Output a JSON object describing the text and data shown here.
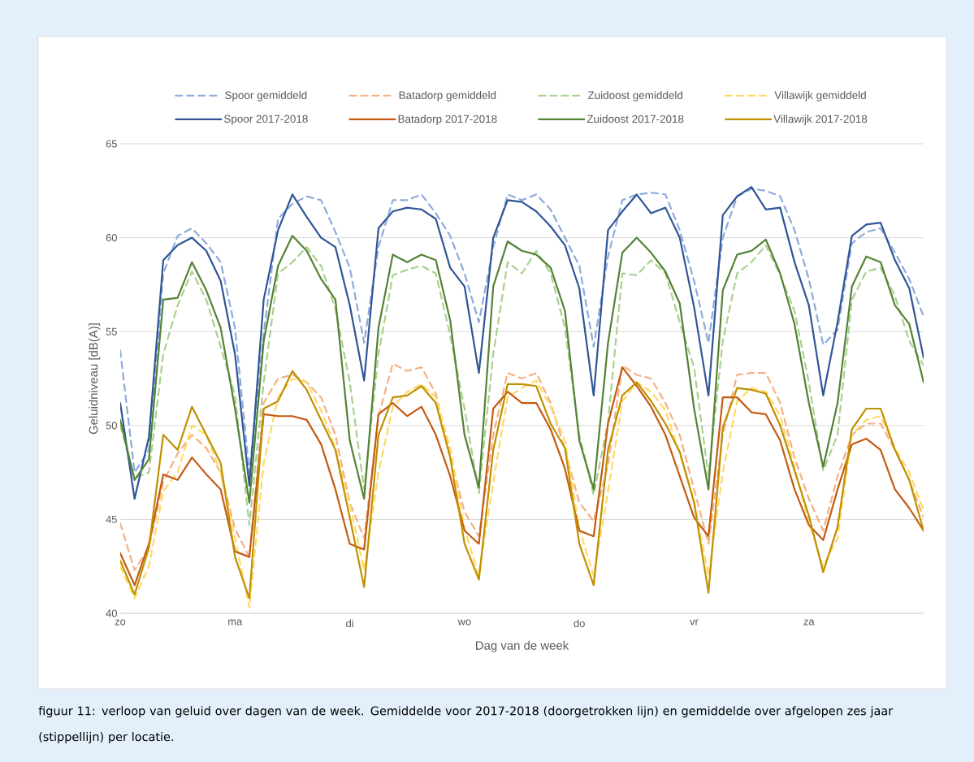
{
  "chart_data": {
    "type": "line",
    "xlabel": "Dag van de week",
    "ylabel": "Geluidniveau [dB(A)]",
    "annotations": [
      "figuur 11: verloop van geluid over dagen van de week. Gemiddelde voor 2017-2018 (doorgetrokken lijn) en gemiddelde over afgelopen zes jaar (stippellijn) per locatie."
    ],
    "categories": [
      "zo",
      null,
      null,
      null,
      null,
      null,
      null,
      null,
      "ma",
      null,
      null,
      null,
      null,
      null,
      null,
      null,
      "di",
      null,
      null,
      null,
      null,
      null,
      null,
      null,
      "wo",
      null,
      null,
      null,
      null,
      null,
      null,
      null,
      "do",
      null,
      null,
      null,
      null,
      null,
      null,
      null,
      "vr",
      null,
      null,
      null,
      null,
      null,
      null,
      null,
      "za",
      null,
      null,
      null,
      null,
      null,
      null,
      null,
      null
    ],
    "ylim": [
      40,
      65
    ],
    "yticks": [
      40,
      45,
      50,
      55,
      60,
      65
    ],
    "grid": "y",
    "legend": "top",
    "series": [
      {
        "name": "Spoor gemiddeld",
        "color": "#8eaadb",
        "line_style": "dashed",
        "values": [
          54.0,
          47.5,
          48.7,
          58.1,
          60.1,
          60.5,
          59.7,
          58.7,
          55.2,
          47.5,
          54.9,
          61.0,
          61.8,
          62.2,
          62.0,
          60.3,
          58.4,
          54.4,
          59.5,
          62.0,
          62.0,
          62.3,
          61.3,
          60.1,
          58.1,
          55.5,
          59.5,
          62.3,
          62.0,
          62.3,
          61.5,
          60.0,
          58.5,
          54.2,
          59.0,
          62.0,
          62.3,
          62.4,
          62.3,
          60.4,
          57.7,
          54.4,
          60.0,
          62.2,
          62.6,
          62.5,
          62.2,
          60.4,
          57.8,
          54.3,
          55.1,
          59.7,
          60.3,
          60.5,
          59.2,
          57.8,
          55.8
        ]
      },
      {
        "name": "Batadorp gemiddeld",
        "color": "#f4b183",
        "line_style": "dashed",
        "values": [
          44.8,
          42.3,
          43.5,
          47.0,
          48.5,
          49.5,
          48.8,
          47.5,
          44.5,
          43.0,
          51.2,
          52.5,
          52.7,
          52.3,
          51.5,
          49.5,
          45.9,
          44.0,
          50.5,
          53.3,
          52.9,
          53.1,
          51.7,
          48.4,
          45.4,
          44.1,
          49.5,
          52.8,
          52.5,
          52.8,
          51.2,
          48.7,
          45.9,
          44.9,
          47.9,
          53.2,
          52.7,
          52.5,
          51.2,
          49.5,
          46.6,
          43.7,
          49.5,
          52.7,
          52.8,
          52.8,
          51.2,
          48.3,
          46.1,
          44.4,
          47.3,
          49.5,
          50.1,
          50.1,
          48.7,
          47.1,
          45.1
        ]
      },
      {
        "name": "Zuidoost gemiddeld",
        "color": "#a9d18e",
        "line_style": "dashed",
        "values": [
          50.0,
          47.2,
          47.5,
          53.8,
          56.4,
          58.2,
          56.7,
          54.2,
          51.6,
          44.7,
          52.3,
          58.1,
          58.7,
          59.5,
          58.5,
          56.2,
          52.3,
          46.6,
          53.8,
          58.0,
          58.3,
          58.5,
          58.1,
          54.8,
          50.9,
          46.4,
          53.8,
          58.7,
          58.1,
          59.3,
          58.1,
          55.2,
          49.5,
          46.3,
          50.2,
          58.1,
          58.0,
          58.8,
          58.1,
          55.5,
          53.1,
          47.3,
          54.5,
          58.1,
          58.7,
          59.6,
          58.0,
          56.1,
          52.3,
          47.6,
          49.5,
          56.7,
          58.2,
          58.4,
          56.9,
          54.5,
          53.2
        ]
      },
      {
        "name": "Villawijk gemiddeld",
        "color": "#ffd966",
        "line_style": "dashed",
        "values": [
          42.5,
          40.8,
          42.5,
          46.5,
          47.5,
          50.0,
          49.5,
          47.5,
          44.0,
          40.3,
          48.0,
          51.5,
          52.5,
          52.3,
          50.8,
          48.8,
          45.8,
          42.3,
          47.5,
          51.0,
          51.8,
          52.2,
          51.5,
          48.8,
          44.5,
          42.0,
          47.0,
          51.5,
          52.0,
          52.4,
          51.0,
          49.2,
          44.5,
          42.0,
          46.5,
          51.3,
          52.3,
          51.8,
          50.8,
          48.5,
          46.0,
          42.0,
          47.5,
          51.3,
          52.0,
          51.8,
          50.5,
          47.8,
          44.8,
          42.5,
          44.0,
          49.5,
          50.3,
          50.5,
          48.8,
          47.5,
          45.5
        ]
      },
      {
        "name": "Spoor 2017-2018",
        "color": "#2f5597",
        "line_style": "solid",
        "values": [
          51.2,
          46.1,
          49.4,
          58.8,
          59.6,
          60.0,
          59.3,
          57.7,
          53.8,
          46.8,
          56.7,
          60.4,
          62.3,
          61.1,
          60.0,
          59.5,
          56.4,
          52.4,
          60.5,
          61.4,
          61.6,
          61.5,
          61.0,
          58.4,
          57.4,
          52.8,
          60.0,
          62.0,
          61.9,
          61.4,
          60.6,
          59.6,
          57.3,
          51.6,
          60.4,
          61.4,
          62.3,
          61.3,
          61.6,
          60.0,
          56.3,
          51.6,
          61.2,
          62.2,
          62.7,
          61.5,
          61.6,
          58.7,
          56.4,
          51.6,
          55.5,
          60.1,
          60.7,
          60.8,
          58.8,
          57.3,
          53.6
        ]
      },
      {
        "name": "Batadorp 2017-2018",
        "color": "#c55a11",
        "line_style": "solid",
        "values": [
          43.2,
          41.5,
          43.7,
          47.4,
          47.1,
          48.3,
          47.4,
          46.6,
          43.3,
          43.0,
          50.6,
          50.5,
          50.5,
          50.3,
          49.0,
          46.6,
          43.7,
          43.4,
          50.6,
          51.2,
          50.5,
          51.0,
          49.5,
          47.3,
          44.4,
          43.7,
          50.9,
          51.8,
          51.2,
          51.2,
          49.8,
          47.7,
          44.4,
          44.1,
          50.1,
          53.1,
          52.1,
          51.0,
          49.5,
          47.3,
          45.1,
          44.1,
          51.5,
          51.5,
          50.7,
          50.6,
          49.2,
          46.6,
          44.7,
          43.9,
          46.6,
          49.0,
          49.3,
          48.7,
          46.6,
          45.6,
          44.4
        ]
      },
      {
        "name": "Zuidoost 2017-2018",
        "color": "#548235",
        "line_style": "solid",
        "values": [
          50.3,
          47.1,
          48.2,
          56.7,
          56.8,
          58.7,
          57.2,
          55.2,
          50.9,
          45.9,
          54.5,
          58.5,
          60.1,
          59.3,
          57.8,
          56.7,
          49.2,
          46.1,
          55.2,
          59.1,
          58.7,
          59.1,
          58.8,
          55.6,
          49.5,
          46.7,
          57.4,
          59.8,
          59.3,
          59.1,
          58.4,
          56.1,
          49.2,
          46.6,
          54.4,
          59.2,
          60.0,
          59.2,
          58.2,
          56.5,
          50.9,
          46.6,
          57.2,
          59.1,
          59.3,
          59.9,
          58.1,
          55.4,
          51.2,
          47.8,
          51.2,
          57.4,
          59.0,
          58.7,
          56.4,
          55.4,
          52.3
        ]
      },
      {
        "name": "Villawijk 2017-2018",
        "color": "#bf9000",
        "line_style": "solid",
        "values": [
          42.8,
          41.0,
          43.5,
          49.5,
          48.7,
          51.0,
          49.5,
          48.0,
          43.0,
          40.8,
          50.9,
          51.3,
          52.9,
          51.9,
          50.3,
          48.7,
          45.1,
          41.4,
          49.5,
          51.5,
          51.6,
          52.1,
          51.2,
          48.3,
          43.7,
          41.8,
          48.7,
          52.2,
          52.2,
          52.1,
          50.1,
          48.8,
          43.7,
          41.5,
          48.7,
          51.6,
          52.3,
          51.3,
          50.1,
          48.6,
          45.9,
          41.1,
          49.9,
          52.0,
          51.9,
          51.7,
          50.0,
          47.6,
          45.2,
          42.2,
          44.6,
          49.8,
          50.9,
          50.9,
          48.7,
          47.1,
          44.4
        ]
      }
    ]
  }
}
